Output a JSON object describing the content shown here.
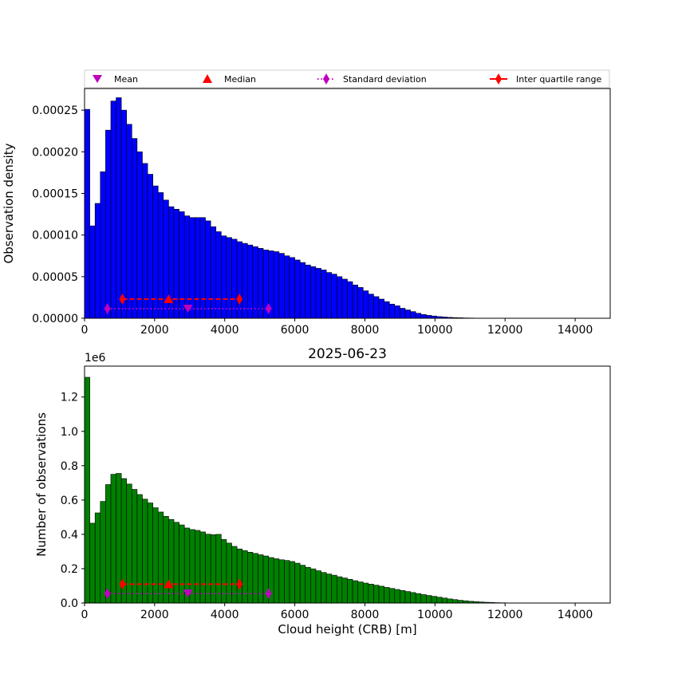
{
  "chart_data": [
    {
      "type": "bar",
      "bin_width": 150,
      "x_start": 0,
      "color": "#0000ff",
      "ylabel": "Observation density",
      "xlabel": "",
      "xlim": [
        0,
        15000
      ],
      "ylim": [
        0,
        0.000276
      ],
      "xticks": [
        0,
        2000,
        4000,
        6000,
        8000,
        10000,
        12000,
        14000
      ],
      "yticks": [
        0.0,
        5e-05,
        0.0001,
        0.00015,
        0.0002,
        0.00025
      ],
      "ytick_labels": [
        "0.00000",
        "0.00005",
        "0.00010",
        "0.00015",
        "0.00020",
        "0.00025"
      ],
      "values": [
        0.000251,
        0.000111,
        0.000138,
        0.000176,
        0.000226,
        0.000261,
        0.000265,
        0.00025,
        0.000233,
        0.000216,
        0.0002,
        0.000186,
        0.000173,
        0.000159,
        0.000151,
        0.000142,
        0.000134,
        0.000131,
        0.000128,
        0.000123,
        0.000121,
        0.000121,
        0.000121,
        0.000117,
        0.00011,
        0.000104,
        9.9e-05,
        9.7e-05,
        9.5e-05,
        9.2e-05,
        9e-05,
        8.8e-05,
        8.6e-05,
        8.4e-05,
        8.2e-05,
        8.1e-05,
        8e-05,
        7.8e-05,
        7.5e-05,
        7.3e-05,
        7e-05,
        6.7e-05,
        6.4e-05,
        6.2e-05,
        6e-05,
        5.8e-05,
        5.5e-05,
        5.3e-05,
        5e-05,
        4.7e-05,
        4.4e-05,
        4e-05,
        3.7e-05,
        3.3e-05,
        2.9e-05,
        2.6e-05,
        2.3e-05,
        2e-05,
        1.7e-05,
        1.5e-05,
        1.2e-05,
        1e-05,
        8e-06,
        6e-06,
        4.5e-06,
        3.5e-06,
        2.7e-06,
        2e-06,
        1.5e-06,
        1.1e-06,
        8e-07,
        6e-07,
        4e-07,
        3e-07,
        2e-07,
        1e-07,
        8e-08,
        6e-08,
        4e-08,
        3e-08,
        2e-08,
        2e-08,
        1e-08,
        1e-08,
        1e-08,
        5e-09,
        5e-09,
        3e-09,
        3e-09,
        2e-09,
        2e-09,
        1e-09,
        1e-09,
        1e-09,
        1e-09,
        1e-09,
        1e-09,
        1e-09,
        1e-09,
        1e-09
      ],
      "markers": {
        "mean": {
          "x": 2950,
          "y": 1.15e-05
        },
        "median": {
          "x": 2400,
          "y": 2.3e-05
        },
        "std": {
          "x": [
            650,
            5250
          ],
          "y": 1.15e-05
        },
        "iqr": {
          "x": [
            1080,
            4420
          ],
          "y": 2.3e-05
        }
      }
    },
    {
      "type": "bar",
      "title": "2025-06-23",
      "bin_width": 150,
      "x_start": 0,
      "color": "#008000",
      "ylabel": "Number of observations",
      "xlabel": "Cloud height (CRB) [m]",
      "xlim": [
        0,
        15000
      ],
      "ylim": [
        0,
        1380000
      ],
      "offset_label": "1e6",
      "xticks": [
        0,
        2000,
        4000,
        6000,
        8000,
        10000,
        12000,
        14000
      ],
      "yticks": [
        0,
        200000,
        400000,
        600000,
        800000,
        1000000,
        1200000
      ],
      "ytick_labels": [
        "0.0",
        "0.2",
        "0.4",
        "0.6",
        "0.8",
        "1.0",
        "1.2"
      ],
      "values": [
        1315000,
        465000,
        525000,
        592000,
        690000,
        750000,
        755000,
        725000,
        693000,
        662000,
        632000,
        605000,
        583000,
        555000,
        530000,
        505000,
        487000,
        470000,
        455000,
        437000,
        428000,
        423000,
        414000,
        401000,
        398000,
        400000,
        370000,
        349000,
        330000,
        315000,
        305000,
        296000,
        289000,
        281000,
        274000,
        265000,
        258000,
        252000,
        248000,
        242000,
        232000,
        220000,
        208000,
        199000,
        188000,
        178000,
        169000,
        162000,
        153000,
        146000,
        138000,
        130000,
        123000,
        116000,
        110000,
        104000,
        98000,
        91000,
        85000,
        79000,
        73000,
        67000,
        61000,
        55000,
        49000,
        44000,
        39000,
        34000,
        29000,
        24000,
        20000,
        16000,
        13000,
        10000,
        8000,
        6000,
        4500,
        3200,
        2200,
        1500,
        1000,
        700,
        500,
        300,
        200,
        150,
        100,
        80,
        60,
        40,
        30,
        20,
        15,
        10,
        8,
        6,
        4,
        3,
        2,
        1
      ],
      "markers": {
        "mean": {
          "x": 2950,
          "y": 55000
        },
        "median": {
          "x": 2400,
          "y": 110000
        },
        "std": {
          "x": [
            650,
            5250
          ],
          "y": 55000
        },
        "iqr": {
          "x": [
            1080,
            4420
          ],
          "y": 110000
        }
      }
    }
  ],
  "legend": {
    "items": [
      {
        "key": "mean",
        "label": "Mean",
        "color": "#bf00bf"
      },
      {
        "key": "median",
        "label": "Median",
        "color": "#ff0000"
      },
      {
        "key": "std",
        "label": "Standard deviation",
        "color": "#bf00bf"
      },
      {
        "key": "iqr",
        "label": "Inter quartile range",
        "color": "#ff0000"
      }
    ]
  }
}
